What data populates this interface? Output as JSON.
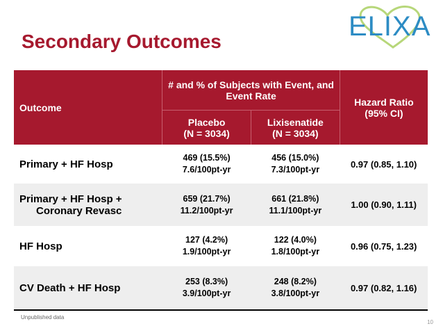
{
  "title": "Secondary Outcomes",
  "logo_text": "ELIXA",
  "table": {
    "header_outcome": "Outcome",
    "header_group": "# and % of Subjects with Event, and Event Rate",
    "header_placebo_1": "Placebo",
    "header_placebo_2": "(N = 3034)",
    "header_lixi_1": "Lixisenatide",
    "header_lixi_2": "(N = 3034)",
    "header_hr_1": "Hazard Ratio",
    "header_hr_2": "(95% CI)",
    "rows": [
      {
        "outcome_1": "Primary + HF Hosp",
        "outcome_2": "",
        "placebo_1": "469 (15.5%)",
        "placebo_2": "7.6/100pt-yr",
        "lixi_1": "456 (15.0%)",
        "lixi_2": "7.3/100pt-yr",
        "hr": "0.97 (0.85, 1.10)"
      },
      {
        "outcome_1": "Primary + HF Hosp +",
        "outcome_2": "Coronary Revasc",
        "placebo_1": "659 (21.7%)",
        "placebo_2": "11.2/100pt-yr",
        "lixi_1": "661 (21.8%)",
        "lixi_2": "11.1/100pt-yr",
        "hr": "1.00 (0.90, 1.11)"
      },
      {
        "outcome_1": "HF Hosp",
        "outcome_2": "",
        "placebo_1": "127 (4.2%)",
        "placebo_2": "1.9/100pt-yr",
        "lixi_1": "122 (4.0%)",
        "lixi_2": "1.8/100pt-yr",
        "hr": "0.96 (0.75, 1.23)"
      },
      {
        "outcome_1": "CV Death + HF Hosp",
        "outcome_2": "",
        "placebo_1": "253 (8.3%)",
        "placebo_2": "3.9/100pt-yr",
        "lixi_1": "248 (8.2%)",
        "lixi_2": "3.8/100pt-yr",
        "hr": "0.97 (0.82, 1.16)"
      }
    ]
  },
  "footnote": "Unpublished data",
  "page_number": "10"
}
